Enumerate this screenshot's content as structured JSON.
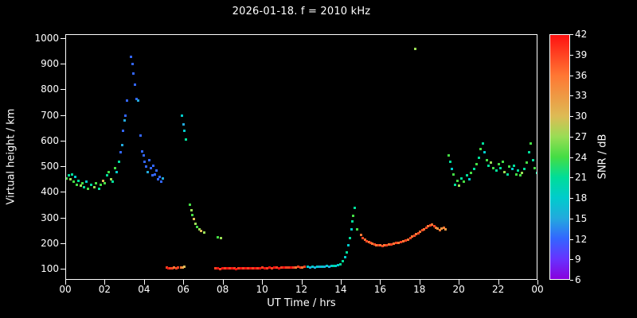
{
  "title": "2026-01-18. f = 2010 kHz",
  "axes": {
    "xlabel": "UT Time / hrs",
    "ylabel": "Virtual height / km",
    "x_ticks": [
      "00",
      "02",
      "04",
      "06",
      "08",
      "10",
      "12",
      "14",
      "16",
      "18",
      "20",
      "22",
      "00"
    ],
    "y_ticks": [
      "1000",
      "900",
      "800",
      "700",
      "600",
      "500",
      "400",
      "300",
      "200",
      "100"
    ]
  },
  "colorbar": {
    "label": "SNR / dB",
    "ticks": [
      "42",
      "39",
      "36",
      "33",
      "30",
      "27",
      "24",
      "21",
      "18",
      "15",
      "12",
      "9",
      "6"
    ],
    "colormap": [
      [
        6,
        "#8800dd"
      ],
      [
        9,
        "#6633ff"
      ],
      [
        12,
        "#3366ff"
      ],
      [
        15,
        "#22aadd"
      ],
      [
        18,
        "#00cccc"
      ],
      [
        21,
        "#00dd99"
      ],
      [
        24,
        "#44dd44"
      ],
      [
        27,
        "#99dd55"
      ],
      [
        30,
        "#ddbb55"
      ],
      [
        33,
        "#ee9944"
      ],
      [
        36,
        "#ff7733"
      ],
      [
        39,
        "#ff4422"
      ],
      [
        42,
        "#ff1111"
      ]
    ]
  },
  "chart_data": {
    "type": "scatter",
    "title": "2026-01-18. f = 2010 kHz",
    "xlabel": "UT Time / hrs",
    "ylabel": "Virtual height / km",
    "color_label": "SNR / dB",
    "xlim": [
      0,
      24
    ],
    "ylim": [
      100,
      1000
    ],
    "color_range": [
      6,
      42
    ],
    "grid": false,
    "background": "#000000",
    "points_format": [
      "ut_hours",
      "virtual_height_km",
      "snr_db"
    ],
    "points": [
      [
        0.05,
        455,
        24
      ],
      [
        0.15,
        465,
        21
      ],
      [
        0.25,
        450,
        27
      ],
      [
        0.32,
        470,
        21
      ],
      [
        0.4,
        440,
        24
      ],
      [
        0.5,
        460,
        18
      ],
      [
        0.57,
        430,
        24
      ],
      [
        0.65,
        445,
        21
      ],
      [
        0.75,
        425,
        27
      ],
      [
        0.85,
        435,
        24
      ],
      [
        0.95,
        420,
        21
      ],
      [
        1.05,
        440,
        18
      ],
      [
        1.15,
        415,
        24
      ],
      [
        1.3,
        430,
        21
      ],
      [
        1.45,
        420,
        27
      ],
      [
        1.55,
        435,
        24
      ],
      [
        1.7,
        415,
        21
      ],
      [
        1.8,
        428,
        24
      ],
      [
        1.9,
        445,
        30
      ],
      [
        2.0,
        435,
        24
      ],
      [
        2.1,
        465,
        21
      ],
      [
        2.2,
        480,
        24
      ],
      [
        2.3,
        450,
        27
      ],
      [
        2.4,
        442,
        21
      ],
      [
        2.5,
        495,
        24
      ],
      [
        2.6,
        480,
        18
      ],
      [
        2.7,
        520,
        21
      ],
      [
        2.78,
        555,
        12
      ],
      [
        2.86,
        585,
        15
      ],
      [
        2.92,
        640,
        12
      ],
      [
        2.98,
        680,
        15
      ],
      [
        3.05,
        700,
        12
      ],
      [
        3.12,
        758,
        12
      ],
      [
        3.3,
        930,
        12
      ],
      [
        3.38,
        900,
        12
      ],
      [
        3.45,
        865,
        12
      ],
      [
        3.52,
        820,
        12
      ],
      [
        3.6,
        765,
        12
      ],
      [
        3.68,
        758,
        15
      ],
      [
        3.8,
        620,
        12
      ],
      [
        3.88,
        560,
        12
      ],
      [
        3.95,
        545,
        12
      ],
      [
        4.02,
        520,
        12
      ],
      [
        4.1,
        500,
        12
      ],
      [
        4.17,
        480,
        15
      ],
      [
        4.24,
        525,
        12
      ],
      [
        4.32,
        495,
        12
      ],
      [
        4.4,
        465,
        12
      ],
      [
        4.47,
        505,
        12
      ],
      [
        4.54,
        470,
        12
      ],
      [
        4.62,
        485,
        12
      ],
      [
        4.7,
        450,
        12
      ],
      [
        4.78,
        460,
        12
      ],
      [
        4.85,
        440,
        12
      ],
      [
        4.95,
        455,
        15
      ],
      [
        5.9,
        700,
        18
      ],
      [
        5.97,
        665,
        15
      ],
      [
        6.03,
        640,
        18
      ],
      [
        6.1,
        605,
        21
      ],
      [
        6.3,
        350,
        24
      ],
      [
        6.38,
        330,
        27
      ],
      [
        6.45,
        310,
        24
      ],
      [
        6.52,
        295,
        30
      ],
      [
        6.6,
        278,
        27
      ],
      [
        6.68,
        263,
        24
      ],
      [
        6.78,
        254,
        27
      ],
      [
        6.9,
        248,
        30
      ],
      [
        7.05,
        242,
        27
      ],
      [
        7.75,
        225,
        24
      ],
      [
        7.88,
        222,
        27
      ],
      [
        5.12,
        105,
        39
      ],
      [
        5.22,
        103,
        42
      ],
      [
        5.32,
        104,
        39
      ],
      [
        5.42,
        103,
        39
      ],
      [
        5.52,
        105,
        36
      ],
      [
        5.62,
        104,
        39
      ],
      [
        5.72,
        106,
        39
      ],
      [
        5.85,
        107,
        36
      ],
      [
        5.95,
        106,
        33
      ],
      [
        6.05,
        108,
        30
      ],
      [
        7.6,
        103,
        39
      ],
      [
        7.72,
        102,
        42
      ],
      [
        7.84,
        101,
        39
      ],
      [
        7.96,
        103,
        42
      ],
      [
        8.08,
        102,
        39
      ],
      [
        8.2,
        104,
        42
      ],
      [
        8.32,
        103,
        39
      ],
      [
        8.44,
        102,
        42
      ],
      [
        8.56,
        103,
        39
      ],
      [
        8.68,
        101,
        42
      ],
      [
        8.8,
        102,
        39
      ],
      [
        8.92,
        103,
        42
      ],
      [
        9.04,
        102,
        39
      ],
      [
        9.16,
        104,
        42
      ],
      [
        9.28,
        103,
        39
      ],
      [
        9.4,
        102,
        42
      ],
      [
        9.52,
        103,
        39
      ],
      [
        9.64,
        104,
        42
      ],
      [
        9.76,
        102,
        39
      ],
      [
        9.88,
        103,
        42
      ],
      [
        10.0,
        105,
        39
      ],
      [
        10.12,
        103,
        42
      ],
      [
        10.24,
        104,
        39
      ],
      [
        10.36,
        105,
        42
      ],
      [
        10.48,
        104,
        39
      ],
      [
        10.6,
        106,
        42
      ],
      [
        10.72,
        105,
        39
      ],
      [
        10.84,
        104,
        42
      ],
      [
        10.96,
        106,
        39
      ],
      [
        11.08,
        105,
        42
      ],
      [
        11.2,
        107,
        39
      ],
      [
        11.32,
        106,
        39
      ],
      [
        11.44,
        105,
        42
      ],
      [
        11.56,
        107,
        39
      ],
      [
        11.68,
        106,
        36
      ],
      [
        11.8,
        108,
        39
      ],
      [
        11.92,
        107,
        39
      ],
      [
        12.04,
        106,
        36
      ],
      [
        12.16,
        108,
        39
      ],
      [
        12.3,
        108,
        18
      ],
      [
        12.42,
        106,
        15
      ],
      [
        12.54,
        108,
        18
      ],
      [
        12.66,
        107,
        15
      ],
      [
        12.78,
        109,
        18
      ],
      [
        12.9,
        108,
        15
      ],
      [
        13.02,
        110,
        18
      ],
      [
        13.14,
        109,
        15
      ],
      [
        13.26,
        111,
        18
      ],
      [
        13.38,
        110,
        15
      ],
      [
        13.5,
        112,
        18
      ],
      [
        13.62,
        111,
        21
      ],
      [
        13.74,
        113,
        18
      ],
      [
        13.86,
        116,
        18
      ],
      [
        13.98,
        120,
        21
      ],
      [
        14.1,
        130,
        21
      ],
      [
        14.2,
        146,
        18
      ],
      [
        14.3,
        166,
        21
      ],
      [
        14.38,
        192,
        18
      ],
      [
        14.46,
        222,
        21
      ],
      [
        14.52,
        256,
        18
      ],
      [
        14.58,
        286,
        21
      ],
      [
        14.63,
        308,
        24
      ],
      [
        14.68,
        340,
        21
      ],
      [
        14.8,
        255,
        24
      ],
      [
        15.0,
        232,
        36
      ],
      [
        15.1,
        222,
        39
      ],
      [
        15.2,
        215,
        36
      ],
      [
        15.3,
        210,
        39
      ],
      [
        15.4,
        205,
        36
      ],
      [
        15.5,
        202,
        39
      ],
      [
        15.6,
        198,
        36
      ],
      [
        15.7,
        196,
        39
      ],
      [
        15.8,
        194,
        36
      ],
      [
        15.9,
        193,
        39
      ],
      [
        16.0,
        192,
        36
      ],
      [
        16.1,
        191,
        39
      ],
      [
        16.2,
        192,
        36
      ],
      [
        16.32,
        193,
        39
      ],
      [
        16.44,
        195,
        36
      ],
      [
        16.56,
        197,
        39
      ],
      [
        16.68,
        199,
        36
      ],
      [
        16.8,
        201,
        39
      ],
      [
        16.92,
        203,
        36
      ],
      [
        17.04,
        206,
        39
      ],
      [
        17.16,
        209,
        36
      ],
      [
        17.28,
        212,
        39
      ],
      [
        17.4,
        216,
        36
      ],
      [
        17.52,
        221,
        39
      ],
      [
        17.62,
        226,
        36
      ],
      [
        17.72,
        231,
        39
      ],
      [
        17.82,
        236,
        36
      ],
      [
        17.92,
        241,
        39
      ],
      [
        18.02,
        246,
        36
      ],
      [
        18.12,
        251,
        39
      ],
      [
        18.22,
        256,
        36
      ],
      [
        18.32,
        262,
        39
      ],
      [
        18.42,
        267,
        36
      ],
      [
        18.52,
        272,
        39
      ],
      [
        18.62,
        274,
        36
      ],
      [
        18.72,
        268,
        39
      ],
      [
        18.82,
        262,
        36
      ],
      [
        18.92,
        257,
        33
      ],
      [
        19.02,
        253,
        36
      ],
      [
        19.12,
        258,
        33
      ],
      [
        19.22,
        262,
        36
      ],
      [
        19.32,
        255,
        33
      ],
      [
        17.75,
        960,
        27
      ],
      [
        19.45,
        545,
        24
      ],
      [
        19.55,
        520,
        21
      ],
      [
        19.62,
        490,
        18
      ],
      [
        19.7,
        470,
        24
      ],
      [
        19.8,
        430,
        21
      ],
      [
        19.9,
        445,
        24
      ],
      [
        20.0,
        425,
        27
      ],
      [
        20.1,
        455,
        21
      ],
      [
        20.25,
        440,
        24
      ],
      [
        20.4,
        465,
        21
      ],
      [
        20.5,
        450,
        18
      ],
      [
        20.6,
        475,
        24
      ],
      [
        20.75,
        490,
        21
      ],
      [
        20.9,
        510,
        24
      ],
      [
        21.0,
        535,
        21
      ],
      [
        21.1,
        570,
        24
      ],
      [
        21.2,
        590,
        21
      ],
      [
        21.3,
        555,
        18
      ],
      [
        21.4,
        525,
        24
      ],
      [
        21.5,
        505,
        21
      ],
      [
        21.62,
        515,
        27
      ],
      [
        21.75,
        495,
        24
      ],
      [
        21.9,
        485,
        21
      ],
      [
        22.0,
        510,
        24
      ],
      [
        22.1,
        495,
        21
      ],
      [
        22.2,
        520,
        24
      ],
      [
        22.3,
        480,
        27
      ],
      [
        22.45,
        470,
        21
      ],
      [
        22.55,
        500,
        24
      ],
      [
        22.7,
        490,
        18
      ],
      [
        22.8,
        505,
        21
      ],
      [
        22.9,
        470,
        24
      ],
      [
        23.0,
        485,
        21
      ],
      [
        23.1,
        465,
        24
      ],
      [
        23.2,
        475,
        27
      ],
      [
        23.3,
        490,
        21
      ],
      [
        23.45,
        515,
        24
      ],
      [
        23.55,
        555,
        21
      ],
      [
        23.65,
        590,
        24
      ],
      [
        23.75,
        525,
        21
      ],
      [
        23.85,
        495,
        24
      ],
      [
        23.95,
        475,
        21
      ]
    ]
  }
}
